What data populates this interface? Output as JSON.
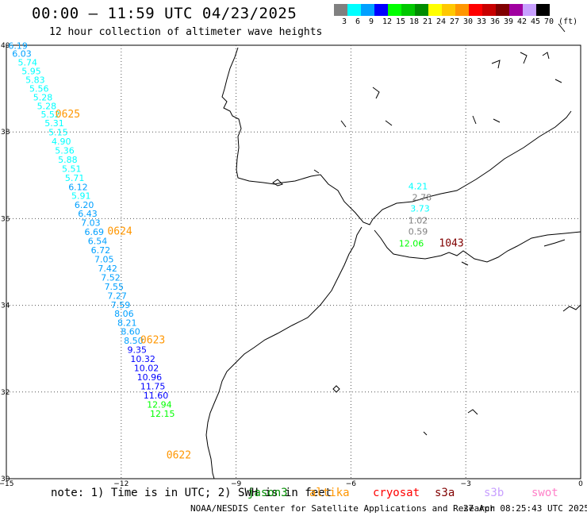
{
  "header": {
    "title": "00:00 – 11:59 UTC 04/23/2025",
    "subtitle": "12 hour collection of altimeter wave heights"
  },
  "legend": {
    "bins": [
      {
        "label": "3",
        "color": "#808080"
      },
      {
        "label": "6",
        "color": "#00ffff"
      },
      {
        "label": "9",
        "color": "#00a0ff"
      },
      {
        "label": "12",
        "color": "#0000ff"
      },
      {
        "label": "15",
        "color": "#00ff00"
      },
      {
        "label": "18",
        "color": "#00c800"
      },
      {
        "label": "21",
        "color": "#008c00"
      },
      {
        "label": "24",
        "color": "#ffff00"
      },
      {
        "label": "27",
        "color": "#ffc800"
      },
      {
        "label": "30",
        "color": "#ff9600"
      },
      {
        "label": "33",
        "color": "#ff0000"
      },
      {
        "label": "36",
        "color": "#c80000"
      },
      {
        "label": "39",
        "color": "#800000"
      },
      {
        "label": "42",
        "color": "#a000a0"
      },
      {
        "label": "45",
        "color": "#c8a0ff"
      },
      {
        "label": "70 (ft)",
        "color": "#000000"
      }
    ]
  },
  "map": {
    "lon_range": [
      -15,
      0
    ],
    "lat_range": [
      30,
      40
    ],
    "lon_ticks": [
      "−15",
      "−12",
      "−9",
      "−6",
      "−3",
      "0"
    ],
    "lat_ticks": [
      "40",
      "38",
      "36",
      "34",
      "32",
      "30"
    ],
    "tracks": [
      {
        "name": "track-west",
        "points": [
          {
            "lon": -14.95,
            "lat": 39.92,
            "v": "6.19",
            "color": "#00a0ff"
          },
          {
            "lon": -14.85,
            "lat": 39.73,
            "v": "6.03",
            "color": "#00a0ff"
          },
          {
            "lon": -14.7,
            "lat": 39.53,
            "v": "5.74",
            "color": "#00ffff"
          },
          {
            "lon": -14.6,
            "lat": 39.33,
            "v": "5.95",
            "color": "#00ffff"
          },
          {
            "lon": -14.5,
            "lat": 39.13,
            "v": "5.83",
            "color": "#00ffff"
          },
          {
            "lon": -14.4,
            "lat": 38.93,
            "v": "5.56",
            "color": "#00ffff"
          },
          {
            "lon": -14.3,
            "lat": 38.73,
            "v": "5.28",
            "color": "#00ffff"
          },
          {
            "lon": -14.2,
            "lat": 38.53,
            "v": "5.28",
            "color": "#00ffff"
          },
          {
            "lon": -14.1,
            "lat": 38.33,
            "v": "5.52",
            "color": "#00ffff"
          },
          {
            "lon": -14.0,
            "lat": 38.13,
            "v": "5.31",
            "color": "#00ffff"
          },
          {
            "lon": -13.9,
            "lat": 37.92,
            "v": "5.15",
            "color": "#00ffff"
          },
          {
            "lon": -13.82,
            "lat": 37.71,
            "v": "4.90",
            "color": "#00ffff"
          },
          {
            "lon": -13.73,
            "lat": 37.5,
            "v": "5.36",
            "color": "#00ffff"
          },
          {
            "lon": -13.65,
            "lat": 37.29,
            "v": "5.88",
            "color": "#00ffff"
          },
          {
            "lon": -13.55,
            "lat": 37.08,
            "v": "5.51",
            "color": "#00ffff"
          },
          {
            "lon": -13.47,
            "lat": 36.87,
            "v": "5.71",
            "color": "#00ffff"
          },
          {
            "lon": -13.38,
            "lat": 36.66,
            "v": "6.12",
            "color": "#00a0ff"
          },
          {
            "lon": -13.3,
            "lat": 36.46,
            "v": "5.91",
            "color": "#00ffff"
          },
          {
            "lon": -13.22,
            "lat": 36.25,
            "v": "6.20",
            "color": "#00a0ff"
          },
          {
            "lon": -13.13,
            "lat": 36.04,
            "v": "6.43",
            "color": "#00a0ff"
          },
          {
            "lon": -13.05,
            "lat": 35.83,
            "v": "7.03",
            "color": "#00a0ff"
          },
          {
            "lon": -12.96,
            "lat": 35.62,
            "v": "6.69",
            "color": "#00a0ff"
          },
          {
            "lon": -12.87,
            "lat": 35.41,
            "v": "6.54",
            "color": "#00a0ff"
          },
          {
            "lon": -12.79,
            "lat": 35.2,
            "v": "6.72",
            "color": "#00a0ff"
          },
          {
            "lon": -12.7,
            "lat": 34.99,
            "v": "7.05",
            "color": "#00a0ff"
          },
          {
            "lon": -12.61,
            "lat": 34.78,
            "v": "7.42",
            "color": "#00a0ff"
          },
          {
            "lon": -12.53,
            "lat": 34.57,
            "v": "7.52",
            "color": "#00a0ff"
          },
          {
            "lon": -12.44,
            "lat": 34.36,
            "v": "7.55",
            "color": "#00a0ff"
          },
          {
            "lon": -12.36,
            "lat": 34.15,
            "v": "7.27",
            "color": "#00a0ff"
          },
          {
            "lon": -12.27,
            "lat": 33.94,
            "v": "7.59",
            "color": "#00a0ff"
          },
          {
            "lon": -12.18,
            "lat": 33.74,
            "v": "8.06",
            "color": "#00a0ff"
          },
          {
            "lon": -12.1,
            "lat": 33.53,
            "v": "8.21",
            "color": "#00a0ff"
          },
          {
            "lon": -12.01,
            "lat": 33.32,
            "v": "8.60",
            "color": "#00a0ff"
          },
          {
            "lon": -11.93,
            "lat": 33.11,
            "v": "8.50",
            "color": "#00a0ff"
          },
          {
            "lon": -11.84,
            "lat": 32.9,
            "v": "9.35",
            "color": "#0000ff"
          },
          {
            "lon": -11.76,
            "lat": 32.69,
            "v": "10.32",
            "color": "#0000ff"
          },
          {
            "lon": -11.67,
            "lat": 32.48,
            "v": "10.02",
            "color": "#0000ff"
          },
          {
            "lon": -11.59,
            "lat": 32.27,
            "v": "10.96",
            "color": "#0000ff"
          },
          {
            "lon": -11.5,
            "lat": 32.06,
            "v": "11.75",
            "color": "#0000ff"
          },
          {
            "lon": -11.42,
            "lat": 31.85,
            "v": "11.60",
            "color": "#0000ff"
          },
          {
            "lon": -11.33,
            "lat": 31.64,
            "v": "12.94",
            "color": "#00ff00"
          },
          {
            "lon": -11.25,
            "lat": 31.43,
            "v": "12.15",
            "color": "#00ff00"
          }
        ],
        "times": [
          {
            "lon": -13.72,
            "lat": 38.33,
            "t": "0625"
          },
          {
            "lon": -12.36,
            "lat": 35.63,
            "t": "0624"
          },
          {
            "lon": -11.5,
            "lat": 33.12,
            "t": "0623"
          },
          {
            "lon": -10.82,
            "lat": 30.47,
            "t": "0622"
          }
        ]
      },
      {
        "name": "track-east",
        "points": [
          {
            "lon": -4.5,
            "lat": 36.68,
            "v": "4.21",
            "color": "#00ffff"
          },
          {
            "lon": -4.4,
            "lat": 36.42,
            "v": "2.78",
            "color": "#808080"
          },
          {
            "lon": -4.45,
            "lat": 36.16,
            "v": "3.73",
            "color": "#00ffff"
          },
          {
            "lon": -4.5,
            "lat": 35.89,
            "v": "1.02",
            "color": "#808080"
          },
          {
            "lon": -4.5,
            "lat": 35.63,
            "v": "0.59",
            "color": "#808080"
          },
          {
            "lon": -4.75,
            "lat": 35.36,
            "v": "12.06",
            "color": "#00ff00"
          }
        ],
        "times": [
          {
            "lon": -3.7,
            "lat": 35.36,
            "t": "1043",
            "color": "#800000"
          }
        ]
      }
    ]
  },
  "footer": {
    "note": "note: 1) Time is in UTC; 2) SWH is in feet",
    "satellites": [
      {
        "name": "jason3",
        "color": "#008c00"
      },
      {
        "name": "altika",
        "color": "#ff9600"
      },
      {
        "name": "cryosat",
        "color": "#ff0000"
      },
      {
        "name": "s3a",
        "color": "#800000"
      },
      {
        "name": "s3b",
        "color": "#c8a0ff"
      },
      {
        "name": "swot",
        "color": "#ff80c8"
      }
    ],
    "credit": "NOAA/NESDIS Center for Satellite Applications and Research",
    "timestamp": "27 Apr 08:25:43 UTC 2025"
  }
}
